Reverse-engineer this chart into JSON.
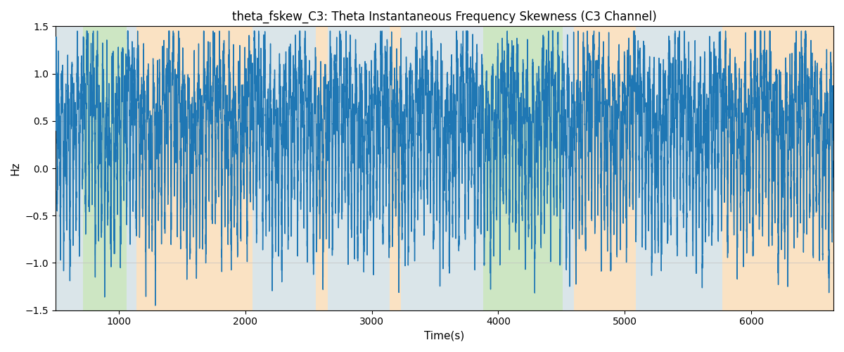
{
  "title": "theta_fskew_C3: Theta Instantaneous Frequency Skewness (C3 Channel)",
  "xlabel": "Time(s)",
  "ylabel": "Hz",
  "ylim": [
    -1.5,
    1.5
  ],
  "xlim": [
    500,
    6650
  ],
  "line_color": "#1f77b4",
  "line_width": 1.0,
  "figsize": [
    12.0,
    5.0
  ],
  "dpi": 100,
  "bands": [
    {
      "xmin": 500,
      "xmax": 720,
      "color": "#aec6cf",
      "alpha": 0.45
    },
    {
      "xmin": 720,
      "xmax": 1060,
      "color": "#90c97a",
      "alpha": 0.45
    },
    {
      "xmin": 1060,
      "xmax": 1140,
      "color": "#aec6cf",
      "alpha": 0.45
    },
    {
      "xmin": 1140,
      "xmax": 2060,
      "color": "#f5c07a",
      "alpha": 0.45
    },
    {
      "xmin": 2060,
      "xmax": 2560,
      "color": "#aec6cf",
      "alpha": 0.45
    },
    {
      "xmin": 2560,
      "xmax": 2650,
      "color": "#f5c07a",
      "alpha": 0.45
    },
    {
      "xmin": 2650,
      "xmax": 3140,
      "color": "#aec6cf",
      "alpha": 0.45
    },
    {
      "xmin": 3140,
      "xmax": 3230,
      "color": "#f5c07a",
      "alpha": 0.45
    },
    {
      "xmin": 3230,
      "xmax": 3880,
      "color": "#aec6cf",
      "alpha": 0.45
    },
    {
      "xmin": 3880,
      "xmax": 4510,
      "color": "#90c97a",
      "alpha": 0.45
    },
    {
      "xmin": 4510,
      "xmax": 4600,
      "color": "#aec6cf",
      "alpha": 0.45
    },
    {
      "xmin": 4600,
      "xmax": 5090,
      "color": "#f5c07a",
      "alpha": 0.45
    },
    {
      "xmin": 5090,
      "xmax": 5770,
      "color": "#aec6cf",
      "alpha": 0.45
    },
    {
      "xmin": 5770,
      "xmax": 5900,
      "color": "#f5c07a",
      "alpha": 0.45
    },
    {
      "xmin": 5900,
      "xmax": 6650,
      "color": "#f5c07a",
      "alpha": 0.45
    }
  ],
  "grid_color": "#c0c0c0",
  "grid_alpha": 0.6,
  "signal_seed": 1234,
  "n_points": 13000
}
